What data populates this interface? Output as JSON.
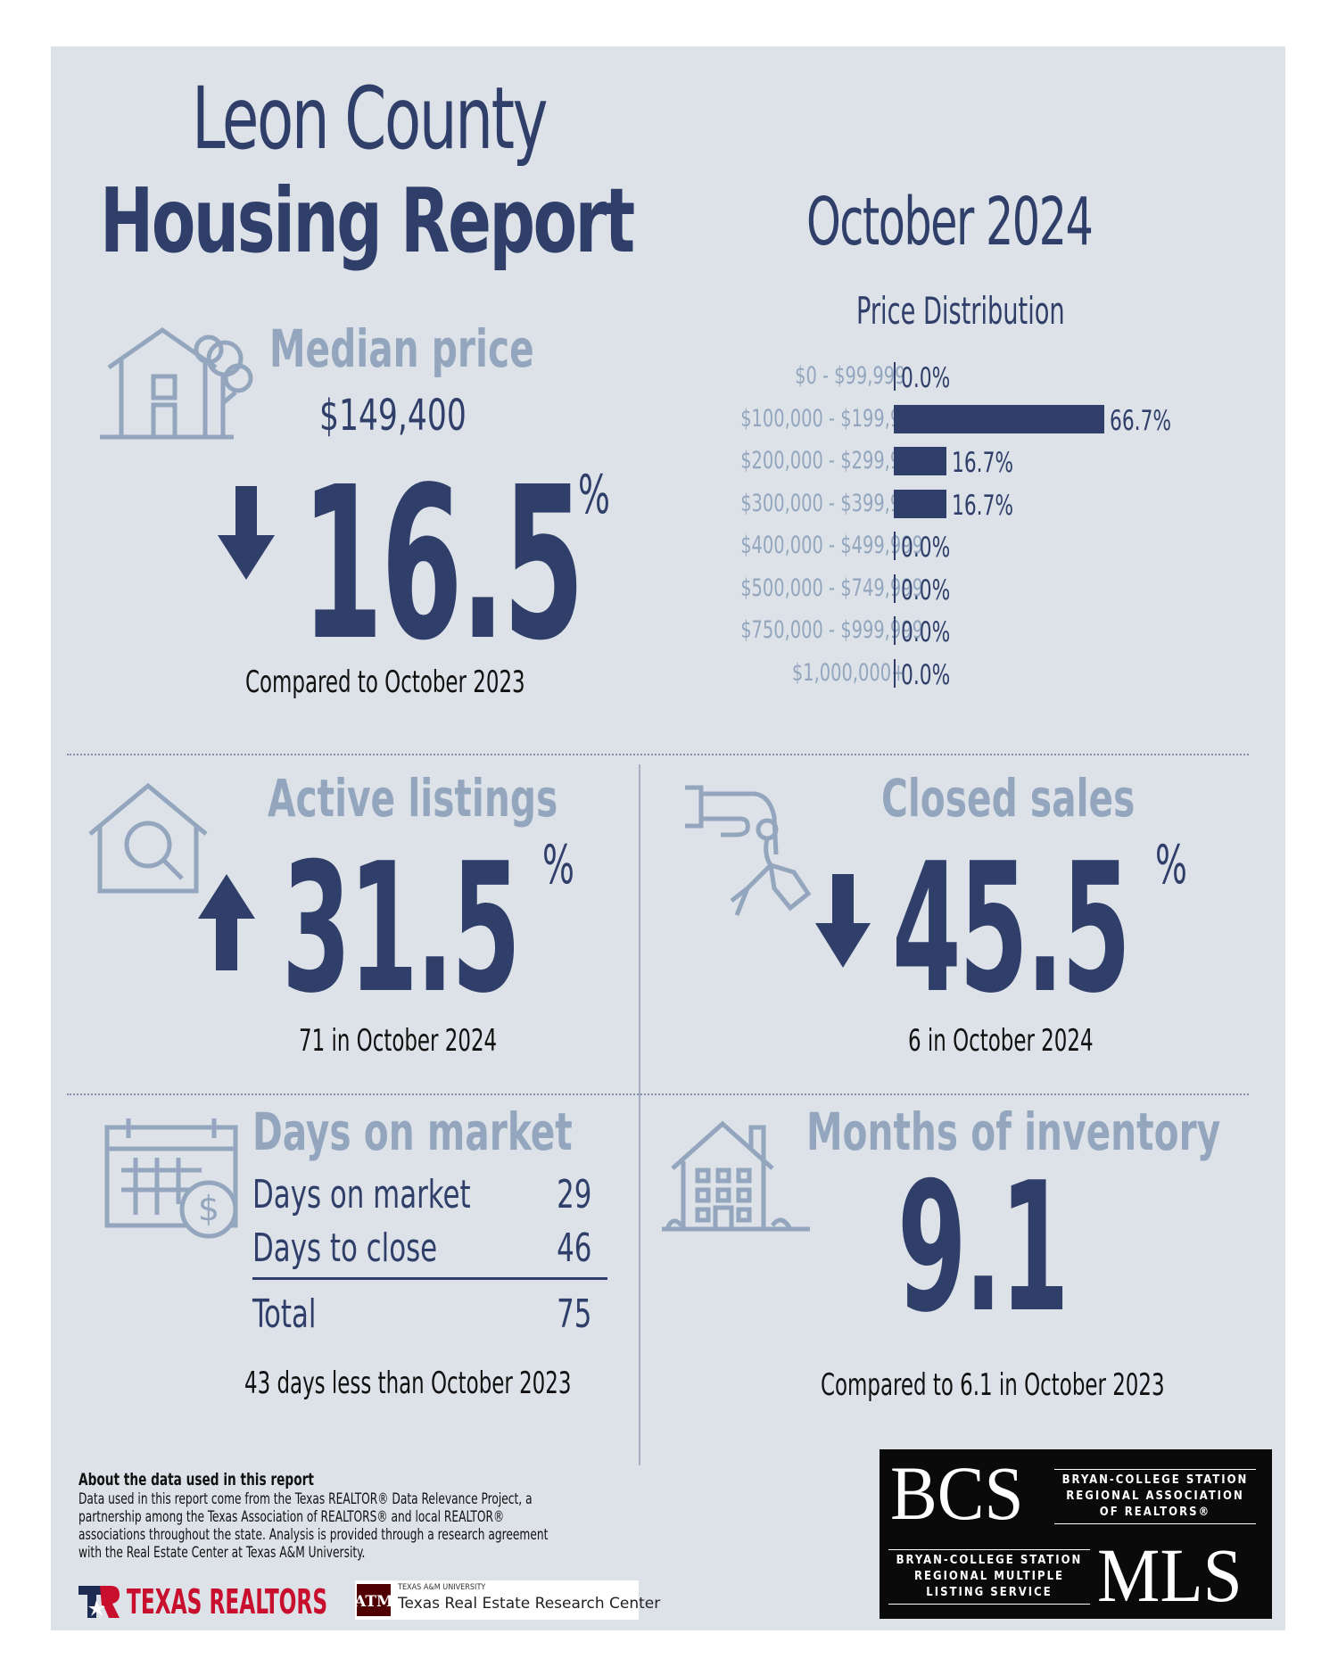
{
  "header": {
    "title_line1": "Leon County",
    "title_line2": "Housing Report",
    "month": "October 2024"
  },
  "median_price": {
    "label": "Median price",
    "value": "$149,400",
    "change": "16.5",
    "unit": "%",
    "direction": "down",
    "caption": "Compared to October 2023"
  },
  "chart_data": {
    "type": "bar",
    "orientation": "horizontal",
    "title": "Price Distribution",
    "categories": [
      "$0 - $99,999",
      "$100,000 - $199,999",
      "$200,000 - $299,999",
      "$300,000 - $399,999",
      "$400,000 - $499,999",
      "$500,000 - $749,999",
      "$750,000 - $999,999",
      "$1,000,000+"
    ],
    "values": [
      0.0,
      66.7,
      16.7,
      16.7,
      0.0,
      0.0,
      0.0,
      0.0
    ],
    "value_labels": [
      "0.0%",
      "66.7%",
      "16.7%",
      "16.7%",
      "0.0%",
      "0.0%",
      "0.0%",
      "0.0%"
    ],
    "xlim": [
      0,
      66.7
    ],
    "grid": false
  },
  "active_listings": {
    "label": "Active listings",
    "change": "31.5",
    "unit": "%",
    "direction": "up",
    "caption": "71 in October 2024"
  },
  "closed_sales": {
    "label": "Closed sales",
    "change": "45.5",
    "unit": "%",
    "direction": "down",
    "caption": "6 in October 2024"
  },
  "days_on_market": {
    "label": "Days on market",
    "rows": [
      {
        "label": "Days on market",
        "value": "29"
      },
      {
        "label": "Days to close",
        "value": "46"
      }
    ],
    "total_label": "Total",
    "total_value": "75",
    "caption": "43 days less than October 2023"
  },
  "months_inventory": {
    "label": "Months of inventory",
    "value": "9.1",
    "caption": "Compared to 6.1 in October 2023"
  },
  "about": {
    "title": "About the data used in this report",
    "text": "Data used in this report come from the Texas REALTOR® Data Relevance Project, a partnership among the Texas Association of REALTORS® and local REALTOR® associations throughout the state. Analysis is provided through a research agreement with the Real Estate Center at Texas A&M University."
  },
  "logos": {
    "texas_realtors": "TEXAS REALTORS",
    "tamu_small": "TEXAS A&M UNIVERSITY",
    "tamu_center": "Texas Real Estate Research Center",
    "bcs": "BCS",
    "bcs_assoc": [
      "BRYAN-COLLEGE STATION",
      "REGIONAL ASSOCIATION",
      "OF REALTORS®"
    ],
    "mls": "MLS",
    "mls_assoc": [
      "BRYAN-COLLEGE STATION",
      "REGIONAL MULTIPLE",
      "LISTING SERVICE"
    ]
  },
  "colors": {
    "navy": "#2f3f6a",
    "muted": "#93a6be",
    "panel": "#dde2e8"
  }
}
